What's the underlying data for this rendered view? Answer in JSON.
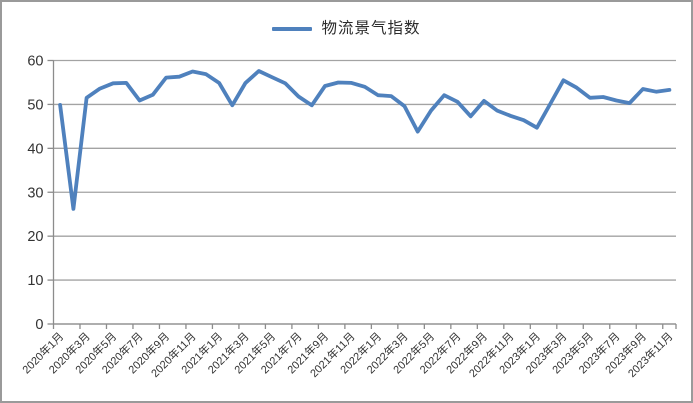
{
  "legend": {
    "label": "物流景气指数"
  },
  "colors": {
    "line": "#4f81bd",
    "gridline": "#a3a3a3",
    "axis": "#8c8c8c",
    "tick": "#8c8c8c",
    "text": "#333333",
    "border": "#9a9a9a",
    "background": "#ffffff"
  },
  "chart_data": {
    "type": "line",
    "title": "",
    "legend_entries": [
      "物流景气指数"
    ],
    "legend_position": "top-center",
    "grid": "horizontal",
    "ylim": [
      0,
      60
    ],
    "yticks": [
      0,
      10,
      20,
      30,
      40,
      50,
      60
    ],
    "xtick_label_every": 2,
    "xtick_labels": [
      "2020年1月",
      "2020年3月",
      "2020年5月",
      "2020年7月",
      "2020年9月",
      "2020年11月",
      "2021年1月",
      "2021年3月",
      "2021年5月",
      "2021年7月",
      "2021年9月",
      "2021年11月",
      "2022年1月",
      "2022年3月",
      "2022年5月",
      "2022年7月",
      "2022年9月",
      "2022年11月",
      "2023年1月",
      "2023年3月",
      "2023年5月",
      "2023年7月",
      "2023年9月",
      "2023年11月"
    ],
    "x": [
      "2020年1月",
      "2020年2月",
      "2020年3月",
      "2020年4月",
      "2020年5月",
      "2020年6月",
      "2020年7月",
      "2020年8月",
      "2020年9月",
      "2020年10月",
      "2020年11月",
      "2020年12月",
      "2021年1月",
      "2021年2月",
      "2021年3月",
      "2021年4月",
      "2021年5月",
      "2021年6月",
      "2021年7月",
      "2021年8月",
      "2021年9月",
      "2021年10月",
      "2021年11月",
      "2021年12月",
      "2022年1月",
      "2022年2月",
      "2022年3月",
      "2022年4月",
      "2022年5月",
      "2022年6月",
      "2022年7月",
      "2022年8月",
      "2022年9月",
      "2022年10月",
      "2022年11月",
      "2022年12月",
      "2023年1月",
      "2023年2月",
      "2023年3月",
      "2023年4月",
      "2023年5月",
      "2023年6月",
      "2023年7月",
      "2023年8月",
      "2023年9月",
      "2023年10月",
      "2023年11月"
    ],
    "series": [
      {
        "name": "物流景气指数",
        "values": [
          49.9,
          26.2,
          51.5,
          53.6,
          54.8,
          54.9,
          50.9,
          52.2,
          56.1,
          56.3,
          57.5,
          56.9,
          54.9,
          49.8,
          54.9,
          57.6,
          56.2,
          54.8,
          51.8,
          49.8,
          54.2,
          55.0,
          54.9,
          54.0,
          52.1,
          51.9,
          49.6,
          43.8,
          48.6,
          52.1,
          50.6,
          47.3,
          50.8,
          48.6,
          47.4,
          46.4,
          44.7,
          50.1,
          55.5,
          53.8,
          51.5,
          51.7,
          50.9,
          50.3,
          53.5,
          52.9,
          53.3
        ]
      }
    ]
  }
}
